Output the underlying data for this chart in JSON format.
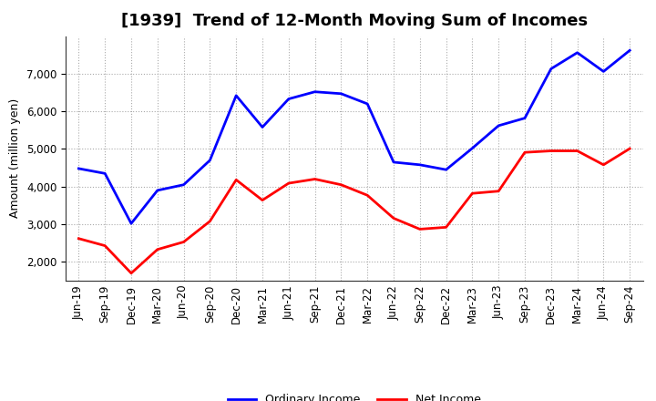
{
  "title": "[1939]  Trend of 12-Month Moving Sum of Incomes",
  "ylabel": "Amount (million yen)",
  "x_labels": [
    "Jun-19",
    "Sep-19",
    "Dec-19",
    "Mar-20",
    "Jun-20",
    "Sep-20",
    "Dec-20",
    "Mar-21",
    "Jun-21",
    "Sep-21",
    "Dec-21",
    "Mar-22",
    "Jun-22",
    "Sep-22",
    "Dec-22",
    "Mar-23",
    "Jun-23",
    "Sep-23",
    "Dec-23",
    "Mar-24",
    "Jun-24",
    "Sep-24"
  ],
  "ordinary_income": [
    4480,
    4350,
    3020,
    3900,
    4050,
    4700,
    6420,
    5580,
    6330,
    6520,
    6470,
    6200,
    4650,
    4580,
    4450,
    5020,
    5620,
    5820,
    7130,
    7560,
    7060,
    7620
  ],
  "net_income": [
    2620,
    2430,
    1700,
    2330,
    2530,
    3080,
    4180,
    3640,
    4090,
    4200,
    4050,
    3770,
    3160,
    2870,
    2920,
    3820,
    3880,
    4910,
    4950,
    4950,
    4580,
    5010
  ],
  "ordinary_color": "#0000ff",
  "net_color": "#ff0000",
  "line_width": 2.0,
  "ylim_min": 1500,
  "ylim_max": 8000,
  "yticks": [
    2000,
    3000,
    4000,
    5000,
    6000,
    7000
  ],
  "legend_ordinary": "Ordinary Income",
  "legend_net": "Net Income",
  "background_color": "#ffffff",
  "grid_color": "#aaaaaa",
  "title_fontsize": 13,
  "ylabel_fontsize": 9,
  "tick_fontsize": 8.5,
  "legend_fontsize": 9
}
